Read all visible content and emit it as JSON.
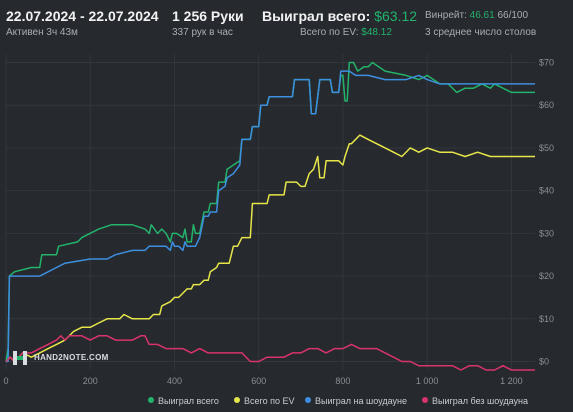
{
  "header": {
    "date_range": "22.07.2024 - 22.07.2024",
    "active_time": "Активен 3ч 43м",
    "hands": "1 256 Руки",
    "hands_rate": "337 рук в час",
    "won_total_label": "Выиграл всего:",
    "won_total_value": "$63.12",
    "ev_label": "Всего по EV:",
    "ev_value": "$48.12",
    "winrate_label": "Винрейт:",
    "winrate_value": "46.61",
    "winrate_suffix": "66/100",
    "tables": "3 среднее число столов"
  },
  "logo": {
    "text": "HAND2NOTE.COM"
  },
  "colors": {
    "background": "#26292e",
    "grid": "#33373d",
    "total": "#23b36b",
    "ev": "#e6e64a",
    "showdown": "#3d8fe0",
    "non_showdown": "#d9336b"
  },
  "chart_data": {
    "type": "line",
    "xlim": [
      0,
      1256
    ],
    "ylim": [
      -2,
      72
    ],
    "x_ticks": [
      {
        "value": 0,
        "label": "0"
      },
      {
        "value": 200,
        "label": "200"
      },
      {
        "value": 400,
        "label": "400"
      },
      {
        "value": 600,
        "label": "600"
      },
      {
        "value": 800,
        "label": "800"
      },
      {
        "value": 1000,
        "label": "1 000"
      },
      {
        "value": 1200,
        "label": "1 200"
      }
    ],
    "y_ticks": [
      {
        "value": 0,
        "label": "$0"
      },
      {
        "value": 10,
        "label": "$10"
      },
      {
        "value": 20,
        "label": "$20"
      },
      {
        "value": 30,
        "label": "$30"
      },
      {
        "value": 40,
        "label": "$40"
      },
      {
        "value": 50,
        "label": "$50"
      },
      {
        "value": 60,
        "label": "$60"
      },
      {
        "value": 70,
        "label": "$70"
      }
    ],
    "grid": true,
    "legend_position": "bottom",
    "series": [
      {
        "name": "Выиграл всего",
        "color": "#23b36b",
        "points": [
          [
            0,
            0
          ],
          [
            5,
            3
          ],
          [
            8,
            20
          ],
          [
            20,
            21
          ],
          [
            60,
            22
          ],
          [
            80,
            22
          ],
          [
            85,
            25
          ],
          [
            120,
            25
          ],
          [
            125,
            27
          ],
          [
            170,
            28
          ],
          [
            180,
            29
          ],
          [
            220,
            31
          ],
          [
            250,
            32
          ],
          [
            300,
            32
          ],
          [
            330,
            31
          ],
          [
            340,
            30
          ],
          [
            345,
            32
          ],
          [
            360,
            30
          ],
          [
            370,
            31
          ],
          [
            380,
            30
          ],
          [
            390,
            28
          ],
          [
            395,
            30
          ],
          [
            405,
            30
          ],
          [
            420,
            29
          ],
          [
            425,
            31
          ],
          [
            430,
            28
          ],
          [
            440,
            28
          ],
          [
            445,
            32
          ],
          [
            450,
            30
          ],
          [
            460,
            30
          ],
          [
            470,
            35
          ],
          [
            480,
            35
          ],
          [
            485,
            37
          ],
          [
            500,
            37
          ],
          [
            505,
            42
          ],
          [
            520,
            42
          ],
          [
            525,
            45
          ],
          [
            540,
            46
          ],
          [
            555,
            47
          ],
          [
            560,
            52
          ],
          [
            580,
            52
          ],
          [
            585,
            55
          ],
          [
            600,
            55
          ],
          [
            605,
            60
          ],
          [
            620,
            60
          ],
          [
            625,
            62
          ],
          [
            680,
            62
          ],
          [
            685,
            66
          ],
          [
            720,
            66
          ],
          [
            725,
            58
          ],
          [
            735,
            58
          ],
          [
            745,
            66
          ],
          [
            770,
            66
          ],
          [
            775,
            63
          ],
          [
            790,
            63
          ],
          [
            795,
            67
          ],
          [
            800,
            67
          ],
          [
            805,
            61
          ],
          [
            810,
            61
          ],
          [
            815,
            70
          ],
          [
            825,
            70
          ],
          [
            835,
            68
          ],
          [
            850,
            69
          ],
          [
            860,
            69
          ],
          [
            870,
            70
          ],
          [
            900,
            68
          ],
          [
            950,
            67
          ],
          [
            980,
            66
          ],
          [
            1000,
            67
          ],
          [
            1030,
            65
          ],
          [
            1050,
            65
          ],
          [
            1070,
            63
          ],
          [
            1090,
            64
          ],
          [
            1110,
            64
          ],
          [
            1130,
            65
          ],
          [
            1150,
            64
          ],
          [
            1160,
            65
          ],
          [
            1180,
            64
          ],
          [
            1200,
            63
          ],
          [
            1256,
            63
          ]
        ]
      },
      {
        "name": "Всего по EV",
        "color": "#e6e64a",
        "points": [
          [
            0,
            0
          ],
          [
            10,
            1
          ],
          [
            20,
            0
          ],
          [
            40,
            2
          ],
          [
            60,
            1
          ],
          [
            80,
            2
          ],
          [
            100,
            3
          ],
          [
            120,
            4
          ],
          [
            140,
            5
          ],
          [
            160,
            7
          ],
          [
            180,
            8
          ],
          [
            200,
            8
          ],
          [
            220,
            9
          ],
          [
            240,
            10
          ],
          [
            250,
            10
          ],
          [
            270,
            10
          ],
          [
            280,
            11
          ],
          [
            300,
            10
          ],
          [
            320,
            10
          ],
          [
            340,
            10
          ],
          [
            350,
            11
          ],
          [
            365,
            11
          ],
          [
            370,
            13
          ],
          [
            390,
            14
          ],
          [
            400,
            15
          ],
          [
            410,
            15
          ],
          [
            420,
            16
          ],
          [
            430,
            17
          ],
          [
            440,
            17
          ],
          [
            445,
            18
          ],
          [
            450,
            18
          ],
          [
            460,
            18
          ],
          [
            470,
            19
          ],
          [
            480,
            19
          ],
          [
            485,
            21
          ],
          [
            500,
            22
          ],
          [
            505,
            23
          ],
          [
            520,
            23
          ],
          [
            530,
            23
          ],
          [
            540,
            27
          ],
          [
            550,
            27
          ],
          [
            560,
            29
          ],
          [
            580,
            29
          ],
          [
            585,
            37
          ],
          [
            620,
            37
          ],
          [
            625,
            39
          ],
          [
            660,
            39
          ],
          [
            665,
            42
          ],
          [
            690,
            42
          ],
          [
            700,
            41
          ],
          [
            710,
            41
          ],
          [
            720,
            44
          ],
          [
            730,
            45
          ],
          [
            740,
            48
          ],
          [
            745,
            43
          ],
          [
            755,
            43
          ],
          [
            760,
            47
          ],
          [
            790,
            47
          ],
          [
            800,
            46
          ],
          [
            805,
            48
          ],
          [
            815,
            51
          ],
          [
            820,
            51
          ],
          [
            840,
            53
          ],
          [
            860,
            52
          ],
          [
            880,
            51
          ],
          [
            900,
            50
          ],
          [
            920,
            49
          ],
          [
            940,
            48
          ],
          [
            960,
            50
          ],
          [
            980,
            49
          ],
          [
            1000,
            50
          ],
          [
            1030,
            49
          ],
          [
            1060,
            49
          ],
          [
            1090,
            48
          ],
          [
            1120,
            49
          ],
          [
            1150,
            48
          ],
          [
            1200,
            48
          ],
          [
            1256,
            48
          ]
        ]
      },
      {
        "name": "Выиграл на шоудауне",
        "color": "#3d8fe0",
        "points": [
          [
            0,
            0
          ],
          [
            5,
            0
          ],
          [
            8,
            20
          ],
          [
            80,
            20
          ],
          [
            100,
            21
          ],
          [
            120,
            22
          ],
          [
            140,
            23
          ],
          [
            200,
            24
          ],
          [
            240,
            24
          ],
          [
            260,
            25
          ],
          [
            300,
            26
          ],
          [
            330,
            26
          ],
          [
            340,
            27
          ],
          [
            380,
            27
          ],
          [
            390,
            26
          ],
          [
            395,
            28
          ],
          [
            400,
            27
          ],
          [
            410,
            27
          ],
          [
            420,
            26
          ],
          [
            425,
            28
          ],
          [
            430,
            27
          ],
          [
            450,
            27
          ],
          [
            460,
            29
          ],
          [
            470,
            34
          ],
          [
            480,
            34
          ],
          [
            485,
            35
          ],
          [
            500,
            35
          ],
          [
            505,
            40
          ],
          [
            520,
            41
          ],
          [
            525,
            43
          ],
          [
            540,
            44
          ],
          [
            555,
            46
          ],
          [
            560,
            52
          ],
          [
            580,
            52
          ],
          [
            585,
            55
          ],
          [
            600,
            55
          ],
          [
            605,
            60
          ],
          [
            620,
            60
          ],
          [
            625,
            62
          ],
          [
            680,
            62
          ],
          [
            685,
            66
          ],
          [
            720,
            66
          ],
          [
            725,
            58
          ],
          [
            735,
            58
          ],
          [
            745,
            66
          ],
          [
            770,
            66
          ],
          [
            775,
            63
          ],
          [
            790,
            63
          ],
          [
            795,
            68
          ],
          [
            810,
            68
          ],
          [
            815,
            68
          ],
          [
            830,
            67
          ],
          [
            860,
            67
          ],
          [
            900,
            66
          ],
          [
            950,
            66
          ],
          [
            980,
            67
          ],
          [
            1000,
            66
          ],
          [
            1030,
            65
          ],
          [
            1050,
            65
          ],
          [
            1070,
            65
          ],
          [
            1100,
            65
          ],
          [
            1150,
            65
          ],
          [
            1200,
            65
          ],
          [
            1256,
            65
          ]
        ]
      },
      {
        "name": "Выиграл без шоудауна",
        "color": "#d9336b",
        "points": [
          [
            0,
            0
          ],
          [
            10,
            1
          ],
          [
            20,
            0
          ],
          [
            40,
            2
          ],
          [
            60,
            2
          ],
          [
            80,
            3
          ],
          [
            100,
            4
          ],
          [
            120,
            5
          ],
          [
            130,
            6
          ],
          [
            140,
            5
          ],
          [
            150,
            6
          ],
          [
            160,
            6
          ],
          [
            180,
            6
          ],
          [
            200,
            5
          ],
          [
            220,
            6
          ],
          [
            240,
            6
          ],
          [
            260,
            5
          ],
          [
            280,
            5
          ],
          [
            300,
            5
          ],
          [
            320,
            6
          ],
          [
            330,
            6
          ],
          [
            340,
            4
          ],
          [
            360,
            4
          ],
          [
            380,
            3
          ],
          [
            400,
            3
          ],
          [
            420,
            3
          ],
          [
            440,
            2
          ],
          [
            460,
            3
          ],
          [
            480,
            2
          ],
          [
            500,
            2
          ],
          [
            520,
            2
          ],
          [
            540,
            2
          ],
          [
            560,
            2
          ],
          [
            580,
            0
          ],
          [
            600,
            0
          ],
          [
            620,
            1
          ],
          [
            640,
            1
          ],
          [
            660,
            1
          ],
          [
            680,
            2
          ],
          [
            700,
            2
          ],
          [
            720,
            3
          ],
          [
            740,
            3
          ],
          [
            760,
            2
          ],
          [
            780,
            3
          ],
          [
            800,
            3
          ],
          [
            820,
            4
          ],
          [
            840,
            3
          ],
          [
            860,
            3
          ],
          [
            880,
            3
          ],
          [
            900,
            2
          ],
          [
            920,
            1
          ],
          [
            940,
            0
          ],
          [
            960,
            0
          ],
          [
            980,
            -1
          ],
          [
            1000,
            -1
          ],
          [
            1020,
            -1
          ],
          [
            1040,
            -1
          ],
          [
            1060,
            -1
          ],
          [
            1080,
            -2
          ],
          [
            1100,
            -1
          ],
          [
            1120,
            -1
          ],
          [
            1140,
            -2
          ],
          [
            1160,
            -2
          ],
          [
            1180,
            -1
          ],
          [
            1200,
            -2
          ],
          [
            1256,
            -2
          ]
        ]
      }
    ]
  }
}
